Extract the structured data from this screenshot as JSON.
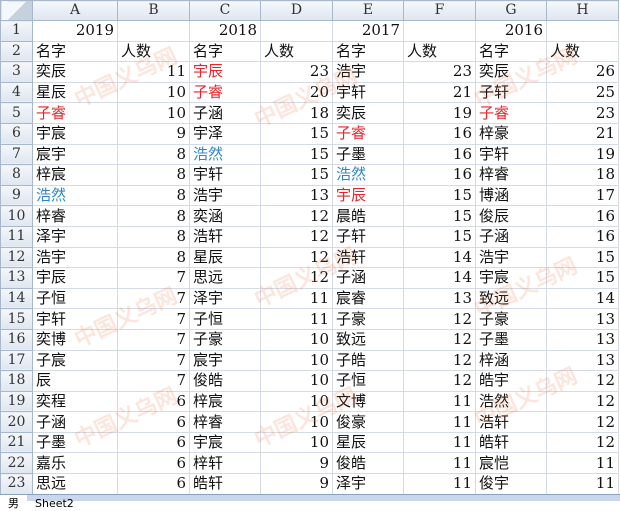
{
  "columns": [
    "A",
    "B",
    "C",
    "D",
    "E",
    "F",
    "G",
    "H"
  ],
  "row_numbers": [
    "1",
    "2",
    "3",
    "4",
    "5",
    "6",
    "7",
    "8",
    "9",
    "10",
    "11",
    "12",
    "13",
    "14",
    "15",
    "16",
    "17",
    "18",
    "19",
    "20",
    "21",
    "22",
    "23"
  ],
  "header_label_name": "名字",
  "header_label_count": "人数",
  "colors": {
    "red": "#e6262b",
    "blue": "#2f86c6"
  },
  "years": [
    {
      "year": "2019",
      "entries": [
        {
          "name": "奕辰",
          "count": "11"
        },
        {
          "name": "星辰",
          "count": "10"
        },
        {
          "name": "子睿",
          "count": "10",
          "color": "red"
        },
        {
          "name": "宇宸",
          "count": "9"
        },
        {
          "name": "宸宇",
          "count": "8"
        },
        {
          "name": "梓宸",
          "count": "8"
        },
        {
          "name": "浩然",
          "count": "8",
          "color": "blue"
        },
        {
          "name": "梓睿",
          "count": "8"
        },
        {
          "name": "泽宇",
          "count": "8"
        },
        {
          "name": "浩宇",
          "count": "8"
        },
        {
          "name": "宇辰",
          "count": "7"
        },
        {
          "name": "子恒",
          "count": "7"
        },
        {
          "name": "宇轩",
          "count": "7"
        },
        {
          "name": "奕博",
          "count": "7"
        },
        {
          "name": "子宸",
          "count": "7"
        },
        {
          "name": "辰",
          "count": "7"
        },
        {
          "name": "奕程",
          "count": "6"
        },
        {
          "name": "子涵",
          "count": "6"
        },
        {
          "name": "子墨",
          "count": "6"
        },
        {
          "name": "嘉乐",
          "count": "6"
        },
        {
          "name": "思远",
          "count": "6"
        }
      ]
    },
    {
      "year": "2018",
      "entries": [
        {
          "name": "宇辰",
          "count": "23",
          "color": "red"
        },
        {
          "name": "子睿",
          "count": "20",
          "color": "red"
        },
        {
          "name": "子涵",
          "count": "18"
        },
        {
          "name": "宇泽",
          "count": "15"
        },
        {
          "name": "浩然",
          "count": "15",
          "color": "blue"
        },
        {
          "name": "宇轩",
          "count": "15"
        },
        {
          "name": "浩宇",
          "count": "13"
        },
        {
          "name": "奕涵",
          "count": "12"
        },
        {
          "name": "浩轩",
          "count": "12"
        },
        {
          "name": "星辰",
          "count": "12"
        },
        {
          "name": "思远",
          "count": "12"
        },
        {
          "name": "泽宇",
          "count": "11"
        },
        {
          "name": "子恒",
          "count": "11"
        },
        {
          "name": "子豪",
          "count": "10"
        },
        {
          "name": "宸宇",
          "count": "10"
        },
        {
          "name": "俊皓",
          "count": "10"
        },
        {
          "name": "梓宸",
          "count": "10"
        },
        {
          "name": "梓睿",
          "count": "10"
        },
        {
          "name": "宇宸",
          "count": "10"
        },
        {
          "name": "梓轩",
          "count": "9"
        },
        {
          "name": "皓轩",
          "count": "9"
        }
      ]
    },
    {
      "year": "2017",
      "entries": [
        {
          "name": "浩宇",
          "count": "23"
        },
        {
          "name": "宇轩",
          "count": "21"
        },
        {
          "name": "奕辰",
          "count": "19"
        },
        {
          "name": "子睿",
          "count": "16",
          "color": "red"
        },
        {
          "name": "子墨",
          "count": "16"
        },
        {
          "name": "浩然",
          "count": "16",
          "color": "blue"
        },
        {
          "name": "宇辰",
          "count": "15",
          "color": "red"
        },
        {
          "name": "晨皓",
          "count": "15"
        },
        {
          "name": "子轩",
          "count": "15"
        },
        {
          "name": "浩轩",
          "count": "14"
        },
        {
          "name": "子涵",
          "count": "14"
        },
        {
          "name": "宸睿",
          "count": "13"
        },
        {
          "name": "子豪",
          "count": "12"
        },
        {
          "name": "致远",
          "count": "12"
        },
        {
          "name": "子皓",
          "count": "12"
        },
        {
          "name": "子恒",
          "count": "12"
        },
        {
          "name": "文博",
          "count": "11"
        },
        {
          "name": "俊豪",
          "count": "11"
        },
        {
          "name": "星辰",
          "count": "11"
        },
        {
          "name": "俊皓",
          "count": "11"
        },
        {
          "name": "泽宇",
          "count": "11"
        }
      ]
    },
    {
      "year": "2016",
      "entries": [
        {
          "name": "奕辰",
          "count": "26"
        },
        {
          "name": "子轩",
          "count": "25"
        },
        {
          "name": "子睿",
          "count": "23",
          "color": "red"
        },
        {
          "name": "梓豪",
          "count": "21"
        },
        {
          "name": "宇轩",
          "count": "19"
        },
        {
          "name": "梓睿",
          "count": "18"
        },
        {
          "name": "博涵",
          "count": "17"
        },
        {
          "name": "俊辰",
          "count": "16"
        },
        {
          "name": "子涵",
          "count": "16"
        },
        {
          "name": "浩宇",
          "count": "15"
        },
        {
          "name": "宇宸",
          "count": "15"
        },
        {
          "name": "致远",
          "count": "14"
        },
        {
          "name": "子豪",
          "count": "13"
        },
        {
          "name": "子墨",
          "count": "13"
        },
        {
          "name": "梓涵",
          "count": "13"
        },
        {
          "name": "皓宇",
          "count": "12"
        },
        {
          "name": "浩然",
          "count": "12"
        },
        {
          "name": "浩轩",
          "count": "12"
        },
        {
          "name": "皓轩",
          "count": "12"
        },
        {
          "name": "宸恺",
          "count": "11"
        },
        {
          "name": "俊宇",
          "count": "11"
        }
      ]
    }
  ],
  "sheet_tabs": [
    {
      "label": "男",
      "active": true
    },
    {
      "label": "Sheet2",
      "active": false
    }
  ],
  "watermark": "中国义乌网 www.zgyww.cn"
}
